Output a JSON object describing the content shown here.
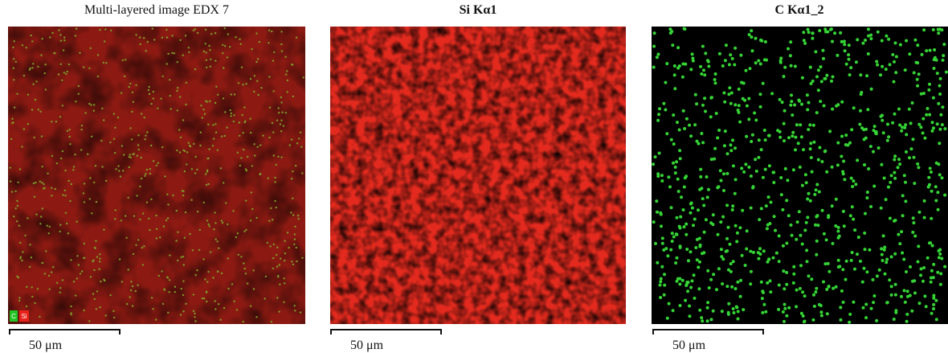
{
  "panels": [
    {
      "title": "Multi-layered image EDX 7",
      "scale_label": "50 μm",
      "legend": [
        "C",
        "Si"
      ]
    },
    {
      "title": "Si Kα1",
      "scale_label": "50 μm"
    },
    {
      "title": "C Kα1_2",
      "scale_label": "50 μm"
    }
  ]
}
